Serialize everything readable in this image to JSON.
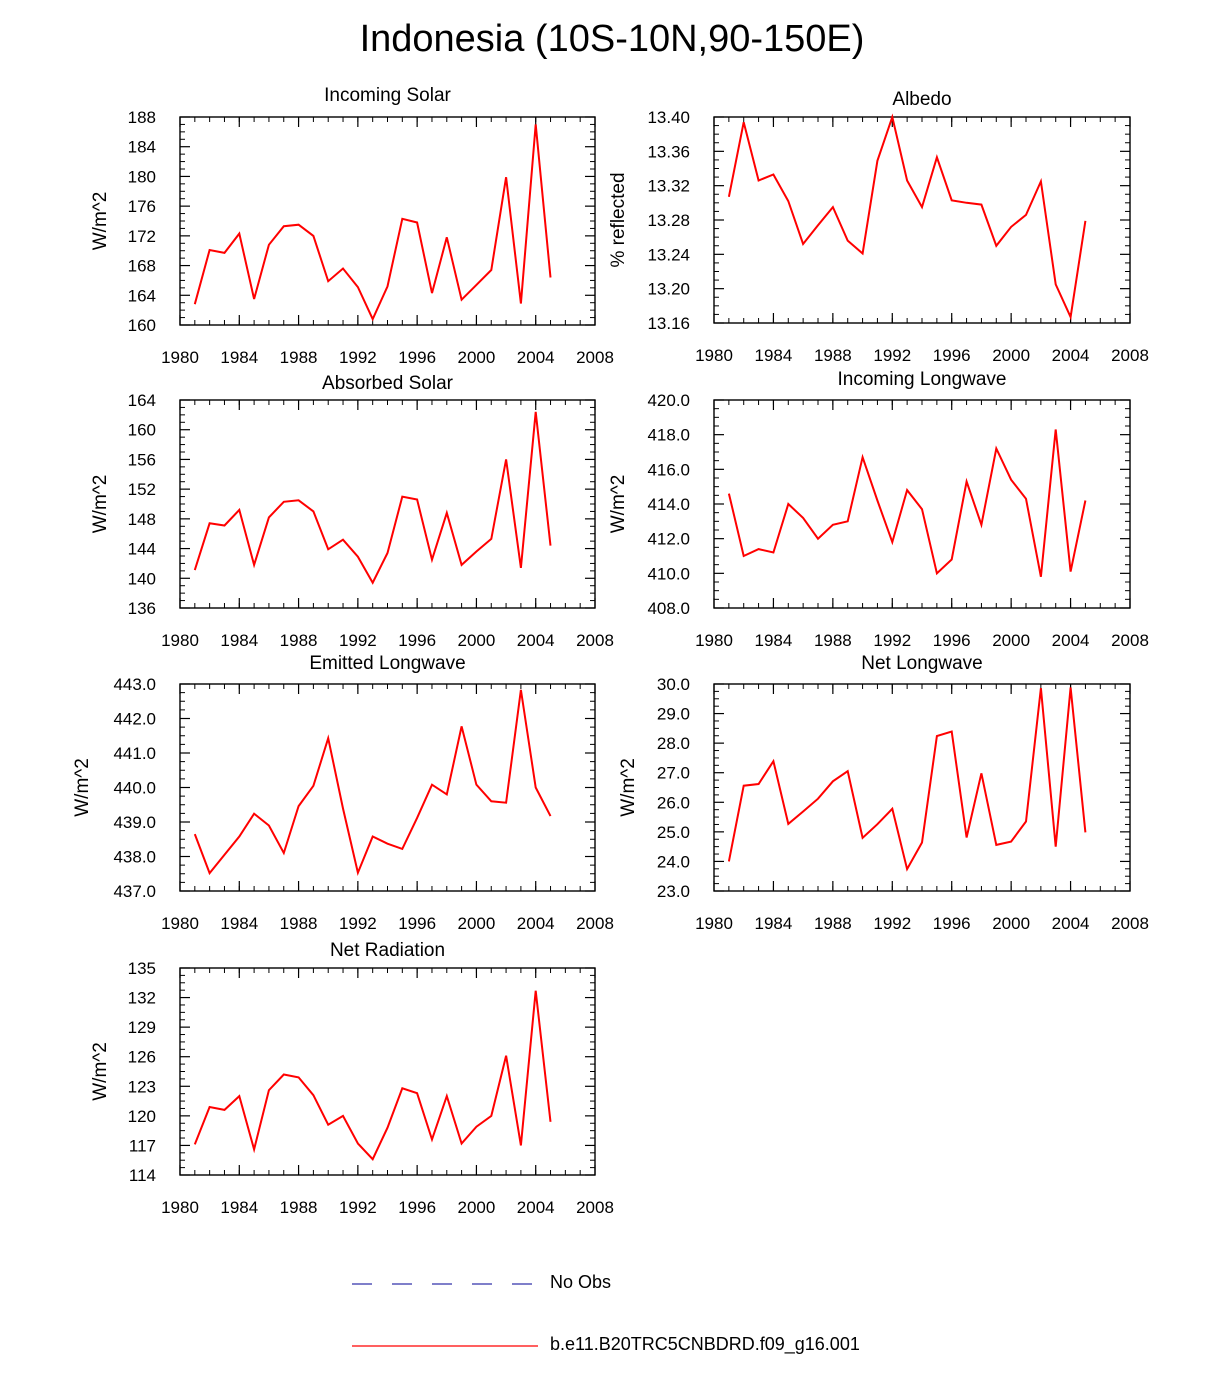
{
  "title": "Indonesia (10S-10N,90-150E)",
  "colors": {
    "model": "#ff0000",
    "obs": "#3333aa",
    "axis": "#000000"
  },
  "legend": [
    {
      "label": "No Obs",
      "style": "dashed",
      "color": "#3333aa"
    },
    {
      "label": "b.e11.B20TRC5CNBDRD.f09_g16.001",
      "style": "solid",
      "color": "#ff0000"
    }
  ],
  "chart_data": [
    {
      "type": "line",
      "title": "Incoming Solar",
      "ylabel": "W/m^2",
      "xlim": [
        1980,
        2008
      ],
      "ylim": [
        160,
        188
      ],
      "xticks": [
        "1980",
        "1984",
        "1988",
        "1992",
        "1996",
        "2000",
        "2004",
        "2008"
      ],
      "yticks": [
        "160",
        "164",
        "168",
        "172",
        "176",
        "180",
        "184",
        "188"
      ],
      "x": [
        1981,
        1982,
        1983,
        1984,
        1985,
        1986,
        1987,
        1988,
        1989,
        1990,
        1991,
        1992,
        1993,
        1994,
        1995,
        1996,
        1997,
        1998,
        1999,
        2000,
        2001,
        2002,
        2003,
        2004,
        2005
      ],
      "series": [
        {
          "name": "b.e11.B20TRC5CNBDRD.f09_g16.001",
          "values": [
            162.8,
            170.1,
            169.7,
            172.3,
            163.5,
            170.8,
            173.3,
            173.5,
            172.0,
            165.9,
            167.6,
            165.1,
            160.8,
            165.2,
            174.3,
            173.8,
            164.3,
            171.8,
            163.4,
            165.4,
            167.4,
            179.9,
            162.9,
            187.0,
            166.4
          ]
        }
      ]
    },
    {
      "type": "line",
      "title": "Albedo",
      "ylabel": "% reflected",
      "xlim": [
        1980,
        2008
      ],
      "ylim": [
        13.16,
        13.4
      ],
      "xticks": [
        "1980",
        "1984",
        "1988",
        "1992",
        "1996",
        "2000",
        "2004",
        "2008"
      ],
      "yticks": [
        "13.16",
        "13.20",
        "13.24",
        "13.28",
        "13.32",
        "13.36",
        "13.40"
      ],
      "x": [
        1981,
        1982,
        1983,
        1984,
        1985,
        1986,
        1987,
        1988,
        1989,
        1990,
        1991,
        1992,
        1993,
        1994,
        1995,
        1996,
        1997,
        1998,
        1999,
        2000,
        2001,
        2002,
        2003,
        2004,
        2005
      ],
      "series": [
        {
          "name": "b.e11.B20TRC5CNBDRD.f09_g16.001",
          "values": [
            13.307,
            13.394,
            13.326,
            13.333,
            13.302,
            13.252,
            13.274,
            13.295,
            13.256,
            13.241,
            13.349,
            13.4,
            13.326,
            13.295,
            13.353,
            13.303,
            13.3,
            13.298,
            13.25,
            13.272,
            13.286,
            13.325,
            13.205,
            13.167,
            13.279
          ]
        }
      ]
    },
    {
      "type": "line",
      "title": "Absorbed Solar",
      "ylabel": "W/m^2",
      "xlim": [
        1980,
        2008
      ],
      "ylim": [
        136,
        164
      ],
      "xticks": [
        "1980",
        "1984",
        "1988",
        "1992",
        "1996",
        "2000",
        "2004",
        "2008"
      ],
      "yticks": [
        "136",
        "140",
        "144",
        "148",
        "152",
        "156",
        "160",
        "164"
      ],
      "x": [
        1981,
        1982,
        1983,
        1984,
        1985,
        1986,
        1987,
        1988,
        1989,
        1990,
        1991,
        1992,
        1993,
        1994,
        1995,
        1996,
        1997,
        1998,
        1999,
        2000,
        2001,
        2002,
        2003,
        2004,
        2005
      ],
      "series": [
        {
          "name": "b.e11.B20TRC5CNBDRD.f09_g16.001",
          "values": [
            141.1,
            147.4,
            147.1,
            149.2,
            141.8,
            148.2,
            150.3,
            150.5,
            149.0,
            143.9,
            145.2,
            142.9,
            139.4,
            143.4,
            151.0,
            150.6,
            142.5,
            148.8,
            141.8,
            143.6,
            145.3,
            156.0,
            141.4,
            162.4,
            144.4
          ]
        }
      ]
    },
    {
      "type": "line",
      "title": "Incoming Longwave",
      "ylabel": "W/m^2",
      "xlim": [
        1980,
        2008
      ],
      "ylim": [
        408.0,
        420.0
      ],
      "xticks": [
        "1980",
        "1984",
        "1988",
        "1992",
        "1996",
        "2000",
        "2004",
        "2008"
      ],
      "yticks": [
        "408.0",
        "410.0",
        "412.0",
        "414.0",
        "416.0",
        "418.0",
        "420.0"
      ],
      "x": [
        1981,
        1982,
        1983,
        1984,
        1985,
        1986,
        1987,
        1988,
        1989,
        1990,
        1991,
        1992,
        1993,
        1994,
        1995,
        1996,
        1997,
        1998,
        1999,
        2000,
        2001,
        2002,
        2003,
        2004,
        2005
      ],
      "series": [
        {
          "name": "b.e11.B20TRC5CNBDRD.f09_g16.001",
          "values": [
            414.6,
            411.0,
            411.4,
            411.2,
            414.0,
            413.2,
            412.0,
            412.8,
            413.0,
            416.7,
            414.2,
            411.8,
            414.8,
            413.7,
            410.0,
            410.8,
            415.3,
            412.8,
            417.2,
            415.4,
            414.3,
            409.8,
            418.3,
            410.1,
            414.2
          ]
        }
      ]
    },
    {
      "type": "line",
      "title": "Emitted Longwave",
      "ylabel": "W/m^2",
      "xlim": [
        1980,
        2008
      ],
      "ylim": [
        437.0,
        443.0
      ],
      "xticks": [
        "1980",
        "1984",
        "1988",
        "1992",
        "1996",
        "2000",
        "2004",
        "2008"
      ],
      "yticks": [
        "437.0",
        "438.0",
        "439.0",
        "440.0",
        "441.0",
        "442.0",
        "443.0"
      ],
      "x": [
        1981,
        1982,
        1983,
        1984,
        1985,
        1986,
        1987,
        1988,
        1989,
        1990,
        1991,
        1992,
        1993,
        1994,
        1995,
        1996,
        1997,
        1998,
        1999,
        2000,
        2001,
        2002,
        2003,
        2004,
        2005
      ],
      "series": [
        {
          "name": "b.e11.B20TRC5CNBDRD.f09_g16.001",
          "values": [
            438.65,
            437.52,
            438.05,
            438.58,
            439.24,
            438.9,
            438.1,
            439.46,
            440.05,
            441.43,
            439.39,
            437.53,
            438.58,
            438.37,
            438.22,
            439.12,
            440.08,
            439.8,
            441.77,
            440.08,
            439.6,
            439.56,
            442.83,
            440.0,
            439.17
          ]
        }
      ]
    },
    {
      "type": "line",
      "title": "Net Longwave",
      "ylabel": "W/m^2",
      "xlim": [
        1980,
        2008
      ],
      "ylim": [
        23.0,
        30.0
      ],
      "xticks": [
        "1980",
        "1984",
        "1988",
        "1992",
        "1996",
        "2000",
        "2004",
        "2008"
      ],
      "yticks": [
        "23.0",
        "24.0",
        "25.0",
        "26.0",
        "27.0",
        "28.0",
        "29.0",
        "30.0"
      ],
      "x": [
        1981,
        1982,
        1983,
        1984,
        1985,
        1986,
        1987,
        1988,
        1989,
        1990,
        1991,
        1992,
        1993,
        1994,
        1995,
        1996,
        1997,
        1998,
        1999,
        2000,
        2001,
        2002,
        2003,
        2004,
        2005
      ],
      "series": [
        {
          "name": "b.e11.B20TRC5CNBDRD.f09_g16.001",
          "values": [
            24.0,
            26.56,
            26.62,
            27.39,
            25.27,
            25.69,
            26.12,
            26.71,
            27.05,
            24.8,
            25.26,
            25.78,
            23.74,
            24.64,
            28.24,
            28.39,
            24.81,
            26.98,
            24.56,
            24.67,
            25.35,
            29.86,
            24.5,
            29.88,
            24.98
          ]
        }
      ]
    },
    {
      "type": "line",
      "title": "Net Radiation",
      "ylabel": "W/m^2",
      "xlim": [
        1980,
        2008
      ],
      "ylim": [
        114,
        135
      ],
      "xticks": [
        "1980",
        "1984",
        "1988",
        "1992",
        "1996",
        "2000",
        "2004",
        "2008"
      ],
      "yticks": [
        "114",
        "117",
        "120",
        "123",
        "126",
        "129",
        "132",
        "135"
      ],
      "x": [
        1981,
        1982,
        1983,
        1984,
        1985,
        1986,
        1987,
        1988,
        1989,
        1990,
        1991,
        1992,
        1993,
        1994,
        1995,
        1996,
        1997,
        1998,
        1999,
        2000,
        2001,
        2002,
        2003,
        2004,
        2005
      ],
      "series": [
        {
          "name": "b.e11.B20TRC5CNBDRD.f09_g16.001",
          "values": [
            117.1,
            120.9,
            120.6,
            122.0,
            116.6,
            122.6,
            124.2,
            123.9,
            122.1,
            119.1,
            120.0,
            117.2,
            115.6,
            118.8,
            122.8,
            122.3,
            117.6,
            122.0,
            117.2,
            118.9,
            120.0,
            126.1,
            117.0,
            132.7,
            119.4
          ]
        }
      ]
    }
  ]
}
